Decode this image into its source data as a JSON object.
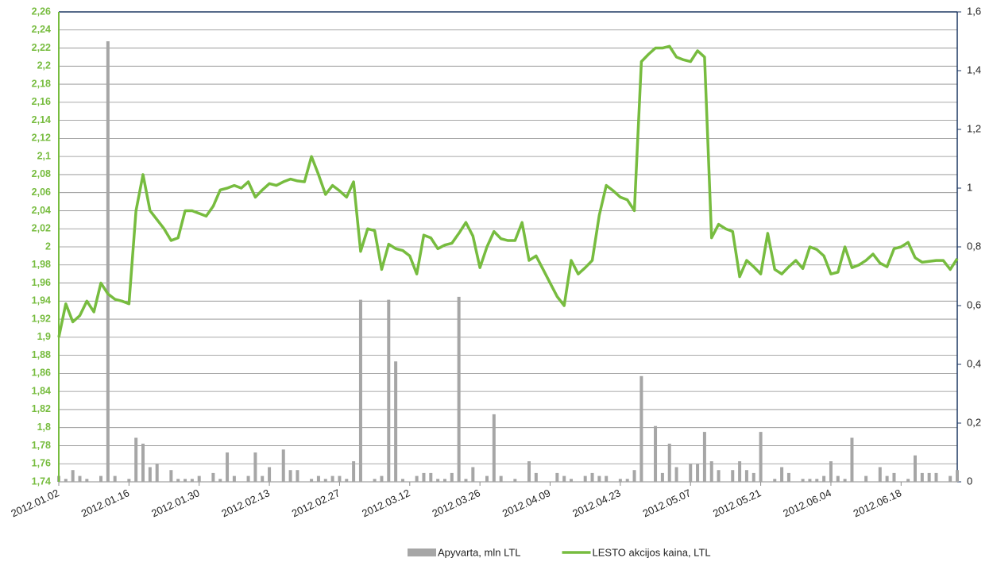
{
  "chart_data": {
    "type": "bar-line",
    "categories": [
      "2012.01.02",
      null,
      null,
      null,
      null,
      null,
      null,
      null,
      null,
      null,
      "2012.01.16",
      null,
      null,
      null,
      null,
      null,
      null,
      null,
      null,
      null,
      "2012.01.30",
      null,
      null,
      null,
      null,
      null,
      null,
      null,
      null,
      null,
      "2012.02.13",
      null,
      null,
      null,
      null,
      null,
      null,
      null,
      null,
      null,
      "2012.02.27",
      null,
      null,
      null,
      null,
      null,
      null,
      null,
      null,
      null,
      "2012.03.12",
      null,
      null,
      null,
      null,
      null,
      null,
      null,
      null,
      null,
      "2012.03.26",
      null,
      null,
      null,
      null,
      null,
      null,
      null,
      null,
      null,
      "2012.04.09",
      null,
      null,
      null,
      null,
      null,
      null,
      null,
      null,
      null,
      "2012.04.23",
      null,
      null,
      null,
      null,
      null,
      null,
      null,
      null,
      null,
      "2012.05.07",
      null,
      null,
      null,
      null,
      null,
      null,
      null,
      null,
      null,
      "2012.05.21",
      null,
      null,
      null,
      null,
      null,
      null,
      null,
      null,
      null,
      "2012.06.04",
      null,
      null,
      null,
      null,
      null,
      null,
      null,
      null,
      null,
      "2012.06.18",
      null,
      null,
      null,
      null,
      null,
      null,
      null,
      null
    ],
    "series": [
      {
        "name": "Apyvarta, mln LTL",
        "type": "bar",
        "axis": "y2",
        "color": "#a6a6a6",
        "values": [
          0.02,
          0.01,
          0.04,
          0.02,
          0.01,
          0,
          0.02,
          1.5,
          0.02,
          0,
          0.01,
          0.15,
          0.13,
          0.05,
          0.06,
          0,
          0.04,
          0.01,
          0.01,
          0.01,
          0.02,
          0,
          0.03,
          0.01,
          0.1,
          0.02,
          0,
          0.02,
          0.1,
          0.02,
          0.05,
          0,
          0.11,
          0.04,
          0.04,
          0,
          0.01,
          0.02,
          0.01,
          0.02,
          0.02,
          0.01,
          0.07,
          0.62,
          0,
          0.01,
          0.02,
          0.62,
          0.41,
          0.01,
          0,
          0.02,
          0.03,
          0.03,
          0.01,
          0.01,
          0.03,
          0.63,
          0.01,
          0.05,
          0,
          0.02,
          0.23,
          0.02,
          0,
          0.01,
          0,
          0.07,
          0.03,
          0,
          0,
          0.03,
          0.02,
          0.01,
          0,
          0.02,
          0.03,
          0.02,
          0.02,
          0,
          0.01,
          0.01,
          0.04,
          0.36,
          0,
          0.19,
          0.03,
          0.13,
          0.05,
          0,
          0.06,
          0.06,
          0.17,
          0.07,
          0.04,
          0,
          0.04,
          0.07,
          0.04,
          0.03,
          0.17,
          0,
          0.01,
          0.05,
          0.03,
          0,
          0.01,
          0.01,
          0.01,
          0.02,
          0.07,
          0.02,
          0.01,
          0.15,
          0,
          0.02,
          0,
          0.05,
          0.02,
          0.03,
          0,
          0.01,
          0.09,
          0.03,
          0.03,
          0.03,
          0,
          0.02,
          0.04
        ]
      },
      {
        "name": "LESTO akcijos kaina, LTL",
        "type": "line",
        "axis": "y",
        "color": "#77bc3f",
        "values": [
          1.9,
          1.937,
          1.917,
          1.924,
          1.94,
          1.928,
          1.96,
          1.948,
          1.942,
          1.94,
          1.937,
          2.04,
          2.08,
          2.04,
          2.03,
          2.02,
          2.007,
          2.01,
          2.04,
          2.04,
          2.037,
          2.034,
          2.045,
          2.063,
          2.065,
          2.068,
          2.065,
          2.072,
          2.055,
          2.063,
          2.07,
          2.068,
          2.072,
          2.075,
          2.073,
          2.072,
          2.1,
          2.08,
          2.058,
          2.068,
          2.062,
          2.055,
          2.072,
          1.995,
          2.02,
          2.018,
          1.975,
          2.003,
          1.998,
          1.996,
          1.99,
          1.97,
          2.013,
          2.01,
          1.998,
          2.002,
          2.004,
          2.015,
          2.027,
          2.012,
          1.977,
          2.0,
          2.017,
          2.009,
          2.007,
          2.007,
          2.027,
          1.985,
          1.99,
          1.975,
          1.96,
          1.945,
          1.935,
          1.985,
          1.97,
          1.977,
          1.985,
          2.035,
          2.068,
          2.062,
          2.055,
          2.052,
          2.04,
          2.205,
          2.213,
          2.22,
          2.22,
          2.222,
          2.21,
          2.207,
          2.205,
          2.217,
          2.21,
          2.01,
          2.025,
          2.02,
          2.017,
          1.967,
          1.985,
          1.978,
          1.97,
          2.015,
          1.975,
          1.97,
          1.978,
          1.985,
          1.976,
          2.0,
          1.997,
          1.99,
          1.97,
          1.972,
          2.0,
          1.977,
          1.98,
          1.985,
          1.992,
          1.982,
          1.978,
          1.998,
          2.0,
          2.005,
          1.988,
          1.983,
          1.984,
          1.985,
          1.985,
          1.975,
          1.987
        ]
      }
    ],
    "ylim": [
      1.74,
      2.26
    ],
    "yticks": [
      {
        "value": 1.74,
        "label": "1,74"
      },
      {
        "value": 1.76,
        "label": "1,76"
      },
      {
        "value": 1.78,
        "label": "1,78"
      },
      {
        "value": 1.8,
        "label": "1,8"
      },
      {
        "value": 1.82,
        "label": "1,82"
      },
      {
        "value": 1.84,
        "label": "1,84"
      },
      {
        "value": 1.86,
        "label": "1,86"
      },
      {
        "value": 1.88,
        "label": "1,88"
      },
      {
        "value": 1.9,
        "label": "1,9"
      },
      {
        "value": 1.92,
        "label": "1,92"
      },
      {
        "value": 1.94,
        "label": "1,94"
      },
      {
        "value": 1.96,
        "label": "1,96"
      },
      {
        "value": 1.98,
        "label": "1,98"
      },
      2,
      {
        "value": 2.02,
        "label": "2,02"
      },
      {
        "value": 2.04,
        "label": "2,04"
      },
      {
        "value": 2.06,
        "label": "2,06"
      },
      {
        "value": 2.08,
        "label": "2,08"
      },
      {
        "value": 2.1,
        "label": "2,1"
      },
      {
        "value": 2.12,
        "label": "2,12"
      },
      {
        "value": 2.14,
        "label": "2,14"
      },
      {
        "value": 2.16,
        "label": "2,16"
      },
      {
        "value": 2.18,
        "label": "2,18"
      },
      {
        "value": 2.2,
        "label": "2,2"
      },
      {
        "value": 2.22,
        "label": "2,22"
      },
      {
        "value": 2.24,
        "label": "2,24"
      },
      {
        "value": 2.26,
        "label": "2,26"
      }
    ],
    "y2lim": [
      0,
      1.6
    ],
    "y2ticks": [
      0,
      {
        "value": 0.2,
        "label": "0,2"
      },
      {
        "value": 0.4,
        "label": "0,4"
      },
      {
        "value": 0.6,
        "label": "0,6"
      },
      {
        "value": 0.8,
        "label": "0,8"
      },
      1,
      {
        "value": 1.2,
        "label": "1,2"
      },
      {
        "value": 1.4,
        "label": "1,4"
      },
      {
        "value": 1.6,
        "label": "1,6"
      }
    ],
    "grid": true,
    "legend": "bottom"
  }
}
